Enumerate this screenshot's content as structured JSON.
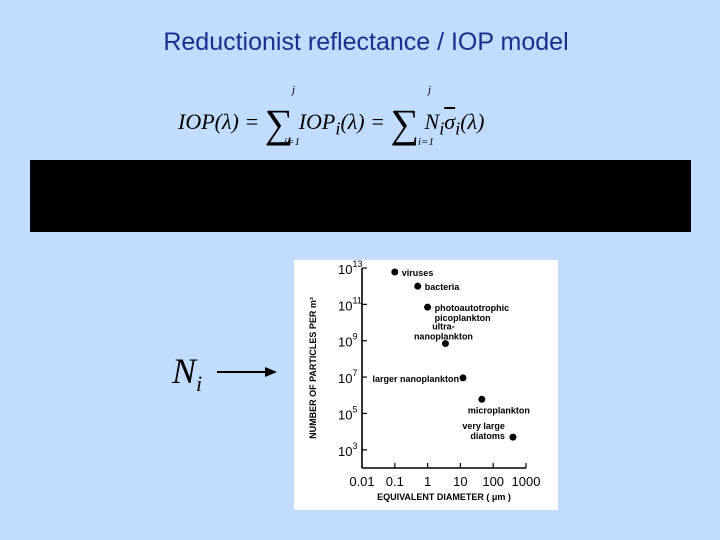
{
  "slide": {
    "title": "Reductionist reflectance / IOP model",
    "equation": {
      "lhs": "IOP(λ) =",
      "middle": "IOP",
      "middle_sub": "i",
      "middle_arg": "(λ) =",
      "right_n": "N",
      "right_n_sub": "i",
      "right_sigma": "σ",
      "right_sigma_sub": "i",
      "right_arg": "(λ)",
      "sum_upper": "j",
      "sum_lower": "i=1"
    },
    "ni_label": "N",
    "ni_sub": "i"
  },
  "chart_data": {
    "type": "scatter",
    "xlabel": "EQUIVALENT DIAMETER ( μm )",
    "ylabel": "NUMBER OF PARTICLES PER m³",
    "x_scale": "log",
    "y_scale": "log",
    "xlim": [
      0.01,
      1000
    ],
    "ylim": [
      100,
      10000000000000
    ],
    "x_ticks": [
      "0.01",
      "0.1",
      "1",
      "10",
      "100",
      "1000"
    ],
    "y_ticks": [
      {
        "base": "10",
        "exp": "13",
        "value": 10000000000000
      },
      {
        "base": "10",
        "exp": "11",
        "value": 100000000000
      },
      {
        "base": "10",
        "exp": "9",
        "value": 1000000000
      },
      {
        "base": "10",
        "exp": "7",
        "value": 10000000
      },
      {
        "base": "10",
        "exp": "5",
        "value": 100000
      },
      {
        "base": "10",
        "exp": "3",
        "value": 1000
      }
    ],
    "points": [
      {
        "label": [
          "viruses"
        ],
        "x": 0.1,
        "y": 6000000000000
      },
      {
        "label": [
          "bacteria"
        ],
        "x": 0.5,
        "y": 1000000000000
      },
      {
        "label": [
          "photoautotrophic",
          "picoplankton"
        ],
        "x": 1.0,
        "y": 70000000000
      },
      {
        "label": [
          "ultra-",
          "nanoplankton"
        ],
        "x": 3.5,
        "y": 700000000
      },
      {
        "label": [
          "larger nanoplankton"
        ],
        "x": 12,
        "y": 9000000
      },
      {
        "label": [
          "microplankton"
        ],
        "x": 45,
        "y": 600000
      },
      {
        "label": [
          "very large",
          "diatoms"
        ],
        "x": 400,
        "y": 5000
      }
    ],
    "grid": false,
    "legend": "none"
  }
}
